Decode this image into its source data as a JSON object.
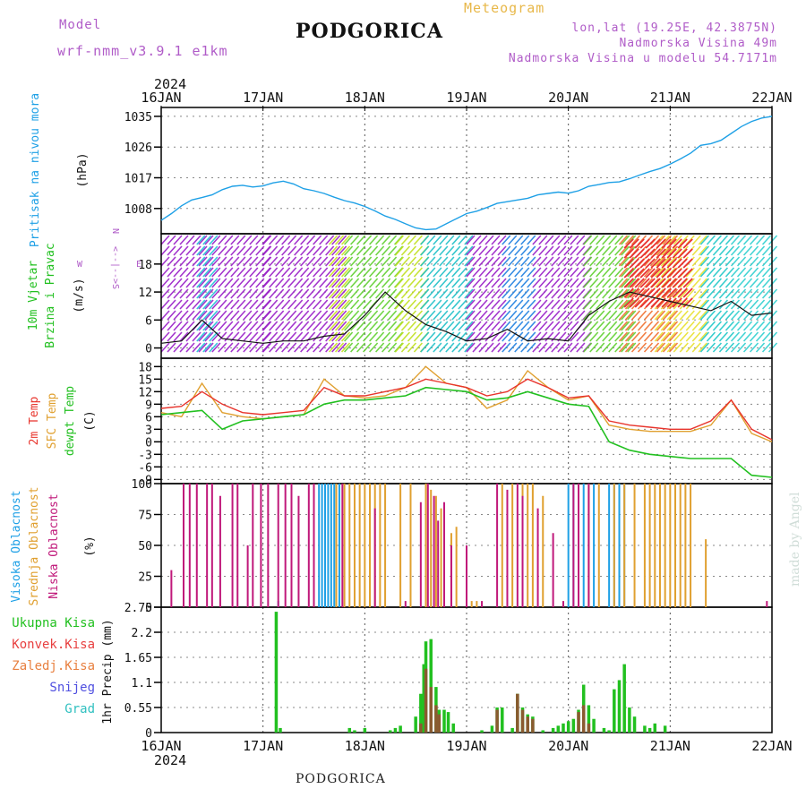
{
  "header": {
    "model_label": "Model",
    "run_label": "wrf-nmm_v3.9.1  e1km",
    "title": "PODGORICA",
    "subtitle": "Meteogram",
    "coords": "lon,lat (19.25E, 42.3875N)",
    "elevation": "Nadmorska Visina 49m",
    "model_elevation": "Nadmorska Visina u modelu 54.7171m"
  },
  "footer": {
    "location": "PODGORICA",
    "watermark": "made by Angel"
  },
  "colors": {
    "pressure": "#1ea0e6",
    "temp2m": "#e8342c",
    "sfc": "#e0a030",
    "dew": "#22c020",
    "high_cloud": "#1ea0e6",
    "mid_cloud": "#e0a030",
    "low_cloud": "#c0187a",
    "total_precip": "#22c020",
    "conv_precip": "#e84040",
    "frozen_precip": "#e88040",
    "snow": "#5050e0",
    "hail": "#30c0c0"
  },
  "chart_data": [
    {
      "type": "line",
      "panel": "pressure",
      "ylabel_1": "Pritisak na nivou mora",
      "ylabel_2": "(hPa)",
      "yticks": [
        "1035",
        "1026",
        "1017",
        "1008"
      ],
      "ylim": [
        1000.6,
        1037.6
      ],
      "x_dates_top_year": "2024",
      "x_dates": [
        "16JAN",
        "17JAN",
        "18JAN",
        "19JAN",
        "20JAN",
        "21JAN",
        "22JAN"
      ],
      "x": [
        0,
        0.1,
        0.2,
        0.3,
        0.4,
        0.5,
        0.6,
        0.7,
        0.8,
        0.9,
        1,
        1.1,
        1.2,
        1.3,
        1.4,
        1.5,
        1.6,
        1.7,
        1.8,
        1.9,
        2,
        2.1,
        2.2,
        2.3,
        2.4,
        2.5,
        2.6,
        2.7,
        2.8,
        2.9,
        3,
        3.1,
        3.2,
        3.3,
        3.4,
        3.5,
        3.6,
        3.7,
        3.8,
        3.9,
        4,
        4.1,
        4.2,
        4.3,
        4.4,
        4.5,
        4.6,
        4.7,
        4.8,
        4.9,
        5,
        5.1,
        5.2,
        5.3,
        5.4,
        5.5,
        5.6,
        5.7,
        5.8,
        5.9,
        6
      ],
      "values": [
        1004.5,
        1006.5,
        1008.8,
        1010.5,
        1011.2,
        1012,
        1013.5,
        1014.5,
        1014.8,
        1014.3,
        1014.6,
        1015.5,
        1016,
        1015.2,
        1013.8,
        1013.2,
        1012.4,
        1011.3,
        1010.3,
        1009.6,
        1008.6,
        1007.3,
        1005.8,
        1004.8,
        1003.5,
        1002.3,
        1001.8,
        1002,
        1003.5,
        1005,
        1006.5,
        1007.2,
        1008.3,
        1009.5,
        1010,
        1010.5,
        1011,
        1012,
        1012.4,
        1012.8,
        1012.5,
        1013.2,
        1014.5,
        1015,
        1015.6,
        1015.8,
        1016.7,
        1017.8,
        1018.8,
        1019.7,
        1021,
        1022.5,
        1024.2,
        1026.5,
        1027,
        1028,
        1030,
        1032,
        1033.5,
        1034.5,
        1035
      ]
    },
    {
      "type": "line",
      "panel": "wind",
      "ylabel_1": "10m Vjetar",
      "ylabel_2": "Brzina i Pravac",
      "ylabel_3": "(m/s)",
      "compass": [
        "N",
        "W",
        "<--|-->",
        "E",
        "S"
      ],
      "yticks": [
        "18",
        "12",
        "6",
        "0"
      ],
      "ylim": [
        -2.2,
        24.5
      ],
      "x": [
        0,
        0.2,
        0.4,
        0.6,
        0.8,
        1,
        1.2,
        1.4,
        1.6,
        1.8,
        2,
        2.2,
        2.4,
        2.6,
        2.8,
        3,
        3.2,
        3.4,
        3.6,
        3.8,
        4,
        4.2,
        4.4,
        4.6,
        4.8,
        5,
        5.2,
        5.4,
        5.6,
        5.8,
        6
      ],
      "values": [
        1,
        1.5,
        6,
        2,
        1.5,
        1,
        1.5,
        1.5,
        2.5,
        3,
        7,
        12,
        8,
        5,
        3.5,
        1.5,
        2,
        4,
        1.5,
        2,
        1.5,
        7,
        10,
        12,
        11,
        10,
        9,
        8,
        10,
        7,
        7.5
      ]
    },
    {
      "type": "line",
      "panel": "temperature",
      "ylabel_1": "2m Temp",
      "ylabel_2": "SFC Temp",
      "ylabel_3": "dewpt Temp",
      "ylabel_4": "(C)",
      "yticks": [
        "18",
        "15",
        "12",
        "9",
        "6",
        "3",
        "0",
        "-3",
        "-6",
        "-9"
      ],
      "ylim": [
        -10,
        20
      ],
      "x": [
        0,
        0.2,
        0.4,
        0.6,
        0.8,
        1,
        1.2,
        1.4,
        1.6,
        1.8,
        2,
        2.2,
        2.4,
        2.6,
        2.8,
        3,
        3.2,
        3.4,
        3.6,
        3.8,
        4,
        4.2,
        4.4,
        4.6,
        4.8,
        5,
        5.2,
        5.4,
        5.6,
        5.8,
        6
      ],
      "series": [
        {
          "name": "2m Temp",
          "values": [
            8,
            8.5,
            12,
            9,
            7,
            6.5,
            7,
            7.5,
            13,
            11,
            11,
            12,
            13,
            15,
            14,
            13,
            11,
            12,
            15,
            13,
            10.5,
            11,
            5,
            4,
            3.5,
            3,
            3,
            5,
            10,
            3,
            0.5
          ]
        },
        {
          "name": "SFC Temp",
          "values": [
            7,
            6,
            14,
            7,
            6,
            5.5,
            6,
            6.5,
            15,
            11,
            10.5,
            11,
            13,
            18,
            14,
            13,
            8,
            10,
            17,
            13,
            10,
            11,
            4,
            3,
            2.5,
            2.5,
            2.5,
            4,
            10,
            2,
            0
          ]
        },
        {
          "name": "dewpt Temp",
          "values": [
            6.5,
            7,
            7.5,
            3,
            5,
            5.5,
            6,
            6.5,
            9,
            10,
            10,
            10.5,
            11,
            13,
            12.5,
            12,
            10,
            10.5,
            12,
            10.5,
            9,
            8.5,
            0,
            -2,
            -3,
            -3.5,
            -4,
            -4,
            -4,
            -8,
            -8.5
          ]
        }
      ]
    },
    {
      "type": "bar",
      "panel": "cloud",
      "ylabel_1": "Visoka Oblacnost",
      "ylabel_2": "Srednja Oblacnost",
      "ylabel_3": "Niska Oblacnost",
      "ylabel_4": "(%)",
      "yticks": [
        "100",
        "75",
        "50",
        "25",
        "0"
      ],
      "ylim": [
        0,
        100
      ],
      "series": [
        {
          "name": "Visoka Oblacnost",
          "x": [
            1.15,
            1.55,
            1.58,
            1.61,
            1.64,
            1.67,
            1.7,
            1.75,
            4.0,
            4.05,
            4.15,
            4.25,
            4.4,
            4.45,
            4.5,
            4.55
          ],
          "values": [
            5,
            100,
            100,
            100,
            100,
            100,
            100,
            100,
            100,
            100,
            100,
            100,
            100,
            100,
            100,
            100
          ]
        },
        {
          "name": "Srednja Oblacnost",
          "x": [
            1.72,
            1.8,
            1.85,
            1.9,
            1.95,
            2.0,
            2.05,
            2.1,
            2.15,
            2.2,
            2.35,
            2.45,
            2.6,
            2.65,
            2.7,
            2.75,
            2.85,
            2.9,
            3.05,
            3.1,
            3.35,
            3.45,
            3.55,
            3.6,
            3.65,
            3.75,
            4.2,
            4.3,
            4.45,
            4.55,
            4.65,
            4.75,
            4.8,
            4.85,
            4.9,
            4.95,
            5.0,
            5.05,
            5.1,
            5.15,
            5.2,
            5.35
          ],
          "values": [
            100,
            100,
            100,
            100,
            100,
            100,
            100,
            100,
            100,
            100,
            100,
            100,
            100,
            95,
            90,
            80,
            60,
            65,
            5,
            5,
            100,
            100,
            100,
            100,
            100,
            90,
            100,
            100,
            100,
            100,
            100,
            100,
            100,
            100,
            100,
            100,
            100,
            100,
            100,
            100,
            100,
            55
          ]
        },
        {
          "name": "Niska Oblacnost",
          "x": [
            0.1,
            0.22,
            0.28,
            0.35,
            0.45,
            0.5,
            0.58,
            0.7,
            0.75,
            0.85,
            0.9,
            0.98,
            1.05,
            1.15,
            1.22,
            1.28,
            1.35,
            1.45,
            1.5,
            1.78,
            2.1,
            2.4,
            2.55,
            2.62,
            2.68,
            2.72,
            2.78,
            2.85,
            3.0,
            3.15,
            3.3,
            3.4,
            3.5,
            3.55,
            3.7,
            3.85,
            3.95,
            4.05,
            4.1,
            4.2,
            5.95
          ],
          "values": [
            30,
            100,
            100,
            100,
            100,
            100,
            90,
            100,
            100,
            50,
            100,
            100,
            100,
            100,
            100,
            100,
            90,
            100,
            100,
            100,
            80,
            5,
            85,
            100,
            90,
            70,
            85,
            50,
            50,
            5,
            100,
            95,
            100,
            90,
            80,
            60,
            5,
            100,
            100,
            100,
            5
          ]
        }
      ]
    },
    {
      "type": "bar",
      "panel": "precipitation",
      "legend": [
        "Ukupna  Kisa",
        "Konvek.Kisa",
        "Zaledj.Kisa",
        "Snijeg",
        "Grad"
      ],
      "ylabel": "1hr Precip (mm)",
      "yticks": [
        "2.75",
        "2.2",
        "1.65",
        "1.1",
        "0.55",
        "0"
      ],
      "ylim": [
        0,
        2.75
      ],
      "x_dates": [
        "16JAN",
        "17JAN",
        "18JAN",
        "19JAN",
        "20JAN",
        "21JAN",
        "22JAN"
      ],
      "x_dates_bottom_year": "2024",
      "series": [
        {
          "name": "Ukupna  Kisa",
          "x": [
            1.13,
            1.17,
            1.85,
            1.9,
            2.0,
            2.25,
            2.3,
            2.35,
            2.5,
            2.55,
            2.58,
            2.6,
            2.65,
            2.7,
            2.73,
            2.78,
            2.82,
            2.87,
            3.15,
            3.25,
            3.3,
            3.35,
            3.45,
            3.5,
            3.55,
            3.6,
            3.65,
            3.75,
            3.85,
            3.9,
            3.95,
            4.0,
            4.05,
            4.1,
            4.15,
            4.2,
            4.25,
            4.35,
            4.4,
            4.45,
            4.5,
            4.55,
            4.6,
            4.65,
            4.75,
            4.8,
            4.85,
            4.95
          ],
          "values": [
            2.65,
            0.1,
            0.1,
            0.05,
            0.1,
            0.05,
            0.1,
            0.15,
            0.35,
            0.85,
            1.5,
            2.0,
            2.05,
            1.0,
            0.5,
            0.5,
            0.45,
            0.2,
            0.05,
            0.15,
            0.55,
            0.55,
            0.1,
            0.85,
            0.55,
            0.4,
            0.35,
            0.05,
            0.1,
            0.15,
            0.2,
            0.25,
            0.3,
            0.5,
            1.05,
            0.6,
            0.3,
            0.1,
            0.05,
            0.95,
            1.15,
            1.5,
            0.55,
            0.35,
            0.15,
            0.1,
            0.2,
            0.15
          ]
        },
        {
          "name": "Konvek.Kisa",
          "x": [
            2.55,
            2.6,
            2.65,
            2.7,
            2.73,
            3.3,
            3.5,
            3.55,
            3.6,
            3.65,
            4.1,
            4.15,
            4.2
          ],
          "values": [
            0.2,
            1.4,
            1.0,
            0.6,
            0.4,
            0.5,
            0.85,
            0.5,
            0.35,
            0.3,
            0.45,
            0.6,
            0.2
          ]
        }
      ]
    }
  ]
}
